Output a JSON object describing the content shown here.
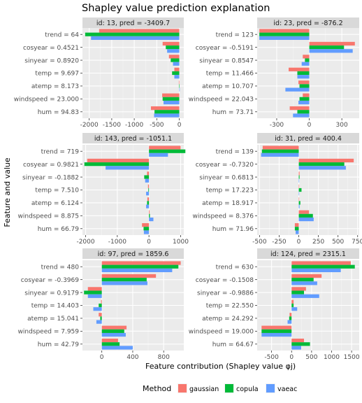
{
  "chart_data": {
    "type": "bar",
    "title": "Shapley value prediction explanation",
    "xlabel": "Feature contribution (Shapley value φj)",
    "ylabel": "Feature and value",
    "legend": {
      "title": "Method",
      "position": "bottom",
      "entries": [
        {
          "name": "gaussian",
          "color": "#F8766D"
        },
        {
          "name": "copula",
          "color": "#00BA38"
        },
        {
          "name": "vaeac",
          "color": "#619CFF"
        }
      ]
    },
    "grid": true,
    "panels": [
      {
        "strip": "id: 13, pred = -3409.7",
        "xlim": [
          -2150,
          100
        ],
        "xticks": [
          -2000,
          -1500,
          -1000,
          -500,
          0
        ],
        "features": [
          "trend = 64",
          "cosyear = 0.4521",
          "sinyear = 0.8920",
          "temp = 9.697",
          "atemp = 8.173",
          "windspeed = 23.000",
          "hum = 94.83"
        ],
        "series": [
          {
            "name": "gaussian",
            "values": [
              -1780,
              -370,
              -230,
              -110,
              -10,
              -380,
              -630
            ]
          },
          {
            "name": "copula",
            "values": [
              -2090,
              -300,
              -190,
              -160,
              -5,
              -370,
              -550
            ]
          },
          {
            "name": "vaeac",
            "values": [
              -1960,
              -270,
              -140,
              -110,
              10,
              -350,
              -560
            ]
          }
        ]
      },
      {
        "strip": "id: 23, pred =  -876.2",
        "xlim": [
          -480,
          460
        ],
        "xticks": [
          -300,
          0,
          300
        ],
        "features": [
          "trend = 123",
          "cosyear = -0.5191",
          "sinyear = 0.8547",
          "temp = 11.466",
          "atemp = 10.707",
          "windspeed = 22.043",
          "hum = 73.71"
        ],
        "series": [
          {
            "name": "gaussian",
            "values": [
              -460,
              420,
              -60,
              -190,
              -100,
              -60,
              -180
            ]
          },
          {
            "name": "copula",
            "values": [
              -460,
              320,
              -40,
              -110,
              -90,
              -90,
              -110
            ]
          },
          {
            "name": "vaeac",
            "values": [
              -460,
              400,
              -70,
              -110,
              -220,
              -100,
              -150
            ]
          }
        ]
      },
      {
        "strip": "id: 143, pred = -1051.1",
        "xlim": [
          -2100,
          1100
        ],
        "xticks": [
          -2000,
          -1000,
          0,
          1000
        ],
        "features": [
          "trend = 719",
          "cosyear = 0.9821",
          "sinyear = -0.1882",
          "temp = 7.510",
          "atemp = 6.124",
          "windspeed = 8.875",
          "hum = 66.79"
        ],
        "series": [
          {
            "name": "gaussian",
            "values": [
              1000,
              -1950,
              -60,
              -30,
              -50,
              20,
              -220
            ]
          },
          {
            "name": "copula",
            "values": [
              1150,
              -2040,
              -150,
              -20,
              -60,
              30,
              -170
            ]
          },
          {
            "name": "vaeac",
            "values": [
              600,
              -1370,
              -120,
              -90,
              -90,
              140,
              -160
            ]
          }
        ]
      },
      {
        "strip": "id: 31, pred =  400.4",
        "xlim": [
          -530,
          770
        ],
        "xticks": [
          -500,
          -250,
          0,
          250,
          500,
          750
        ],
        "features": [
          "trend = 139",
          "cosyear = -0.7320",
          "sinyear = 0.6813",
          "temp = 17.223",
          "atemp = 18.917",
          "windspeed = 8.376",
          "hum = 71.96"
        ],
        "series": [
          {
            "name": "gaussian",
            "values": [
              -460,
              700,
              10,
              5,
              5,
              130,
              -50
            ]
          },
          {
            "name": "copula",
            "values": [
              -470,
              580,
              10,
              35,
              20,
              180,
              -50
            ]
          },
          {
            "name": "vaeac",
            "values": [
              -480,
              600,
              5,
              5,
              10,
              190,
              -40
            ]
          }
        ]
      },
      {
        "strip": "id: 97, pred =  1859.6",
        "xlim": [
          -250,
          1060
        ],
        "xticks": [
          0,
          400,
          800
        ],
        "features": [
          "trend = 480",
          "cosyear = -0.3969",
          "sinyear = 0.9179",
          "temp = 14.403",
          "atemp = 15.041",
          "windspeed = 7.959",
          "hum = 42.79"
        ],
        "series": [
          {
            "name": "gaussian",
            "values": [
              1020,
              700,
              -180,
              -10,
              -40,
              320,
              210
            ]
          },
          {
            "name": "copula",
            "values": [
              990,
              580,
              -230,
              -40,
              -20,
              290,
              230
            ]
          },
          {
            "name": "vaeac",
            "values": [
              910,
              590,
              -180,
              -110,
              -70,
              310,
              400
            ]
          }
        ]
      },
      {
        "strip": "id: 124, pred =  2315.1",
        "xlim": [
          -860,
          1690
        ],
        "xticks": [
          -500,
          0,
          500,
          1000,
          1500
        ],
        "features": [
          "trend = 630",
          "cosyear = -0.1508",
          "sinyear = -0.9886",
          "temp = 22.550",
          "atemp = 24.292",
          "windspeed = 19.000",
          "hum = 64.67"
        ],
        "series": [
          {
            "name": "gaussian",
            "values": [
              1480,
              750,
              360,
              50,
              -50,
              -750,
              310
            ]
          },
          {
            "name": "copula",
            "values": [
              1580,
              550,
              310,
              50,
              -60,
              -750,
              460
            ]
          },
          {
            "name": "vaeac",
            "values": [
              1230,
              640,
              690,
              140,
              -100,
              -750,
              240
            ]
          }
        ]
      }
    ]
  }
}
